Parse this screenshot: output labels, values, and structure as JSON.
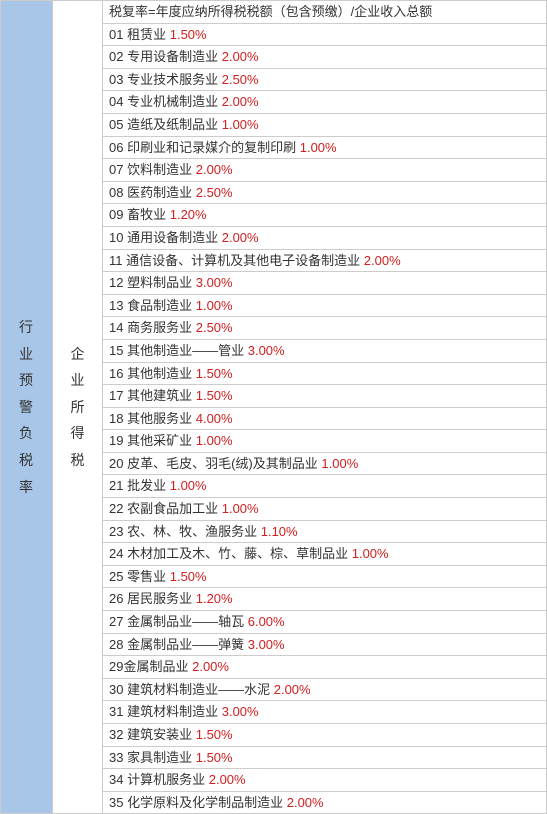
{
  "labels": {
    "left": "行业预警负税率",
    "mid": "企业所得税"
  },
  "formula": "税复率=年度应纳所得税税额（包含预缴）/企业收入总额",
  "rows": [
    {
      "num": "01",
      "name": "租赁业",
      "pct": "1.50%"
    },
    {
      "num": "02",
      "name": "专用设备制造业",
      "pct": "2.00%"
    },
    {
      "num": "03",
      "name": "专业技术服务业",
      "pct": "2.50%"
    },
    {
      "num": "04",
      "name": "专业机械制造业",
      "pct": "2.00%"
    },
    {
      "num": "05",
      "name": "造纸及纸制品业",
      "pct": "1.00%"
    },
    {
      "num": "06",
      "name": "印刷业和记录媒介的复制印刷",
      "pct": "1.00%"
    },
    {
      "num": "07",
      "name": "饮料制造业",
      "pct": "2.00%"
    },
    {
      "num": "08",
      "name": "医药制造业",
      "pct": "2.50%"
    },
    {
      "num": "09",
      "name": "畜牧业",
      "pct": "1.20%"
    },
    {
      "num": "10",
      "name": "通用设备制造业",
      "pct": "2.00%"
    },
    {
      "num": "11",
      "name": "通信设备、计算机及其他电子设备制造业",
      "pct": "2.00%"
    },
    {
      "num": "12",
      "name": "塑料制品业",
      "pct": "3.00%"
    },
    {
      "num": "13",
      "name": "食品制造业",
      "pct": "1.00%"
    },
    {
      "num": "14",
      "name": "商务服务业",
      "pct": "2.50%"
    },
    {
      "num": "15",
      "name": "其他制造业——管业",
      "pct": "3.00%"
    },
    {
      "num": "16",
      "name": "其他制造业",
      "pct": "1.50%"
    },
    {
      "num": "17",
      "name": "其他建筑业",
      "pct": "1.50%"
    },
    {
      "num": "18",
      "name": "其他服务业",
      "pct": "4.00%"
    },
    {
      "num": "19",
      "name": "其他采矿业",
      "pct": "1.00%"
    },
    {
      "num": "20",
      "name": "皮革、毛皮、羽毛(绒)及其制品业",
      "pct": "1.00%"
    },
    {
      "num": "21",
      "name": "批发业",
      "pct": "1.00%"
    },
    {
      "num": "22",
      "name": "农副食品加工业",
      "pct": "1.00%"
    },
    {
      "num": "23",
      "name": "农、林、牧、渔服务业",
      "pct": "1.10%"
    },
    {
      "num": "24",
      "name": "木材加工及木、竹、藤、棕、草制品业",
      "pct": "1.00%"
    },
    {
      "num": "25",
      "name": "零售业",
      "pct": "1.50%"
    },
    {
      "num": "26",
      "name": "居民服务业",
      "pct": "1.20%"
    },
    {
      "num": "27",
      "name": "金属制品业——轴瓦",
      "pct": "6.00%"
    },
    {
      "num": "28",
      "name": "金属制品业——弹簧",
      "pct": "3.00%"
    },
    {
      "num": "29",
      "name": "金属制品业",
      "pct": "2.00%",
      "nospace": true
    },
    {
      "num": "30",
      "name": "建筑材料制造业——水泥",
      "pct": "2.00%"
    },
    {
      "num": "31",
      "name": "建筑材料制造业",
      "pct": "3.00%"
    },
    {
      "num": "32",
      "name": "建筑安装业",
      "pct": "1.50%"
    },
    {
      "num": "33",
      "name": "家具制造业",
      "pct": "1.50%"
    },
    {
      "num": "34",
      "name": "计算机服务业",
      "pct": "2.00%"
    },
    {
      "num": "35",
      "name": "化学原料及化学制品制造业",
      "pct": "2.00%"
    }
  ]
}
